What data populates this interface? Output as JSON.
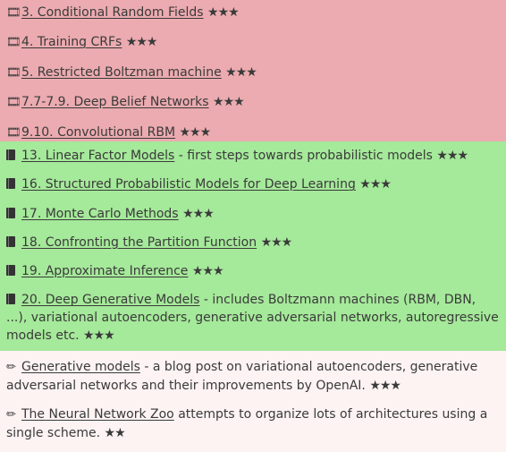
{
  "video_section": {
    "color": "#ebabb0",
    "icon": "film-icon",
    "items": [
      {
        "title": "3. Conditional Random Fields",
        "stars": "★★★"
      },
      {
        "title": "4. Training CRFs",
        "stars": "★★★"
      },
      {
        "title": "5. Restricted Boltzman machine",
        "stars": "★★★"
      },
      {
        "title": "7.7-7.9. Deep Belief Networks",
        "stars": "★★★"
      },
      {
        "title": "9.10. Convolutional RBM",
        "stars": "★★★"
      }
    ]
  },
  "book_section": {
    "color": "#a5e99a",
    "icon": "book-icon",
    "items": [
      {
        "title": "13. Linear Factor Models",
        "desc": " - first steps towards probabilistic models ",
        "stars": "★★★"
      },
      {
        "title": "16. Structured Probabilistic Models for Deep Learning",
        "desc": " ",
        "stars": "★★★"
      },
      {
        "title": "17. Monte Carlo Methods",
        "desc": " ",
        "stars": "★★★"
      },
      {
        "title": "18. Confronting the Partition Function",
        "desc": " ",
        "stars": "★★★"
      },
      {
        "title": "19. Approximate Inference",
        "desc": " ",
        "stars": "★★★"
      },
      {
        "title": "20. Deep Generative Models",
        "desc": " - includes Boltzmann machines (RBM, DBN, ...), variational autoencoders, generative adversarial networks, autoregressive models etc. ",
        "stars": "★★★"
      }
    ]
  },
  "blog_section": {
    "color": "#fdf3f3",
    "icon": "pencil-icon",
    "items": [
      {
        "title": "Generative models",
        "desc": " - a blog post on variational autoencoders, generative adversarial networks and their improvements by OpenAI. ",
        "stars": "★★★"
      },
      {
        "title": "The Neural Network Zoo",
        "desc": " attempts to organize lots of architectures using a single scheme. ",
        "stars": "★★"
      }
    ]
  }
}
